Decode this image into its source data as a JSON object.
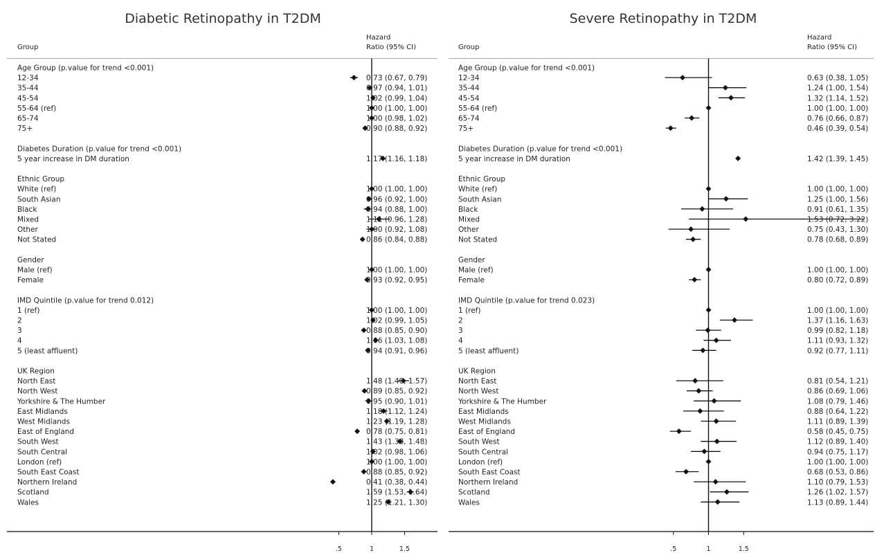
{
  "chart_data": [
    {
      "type": "forest",
      "title": "Diabetic Retinopathy in T2DM",
      "header_group": "Group",
      "header_hr_line1": "Hazard",
      "header_hr_line2": "Ratio (95% CI)",
      "x_ticks": [
        ".5",
        "1",
        "1.5"
      ],
      "xlim": [
        -4.65,
        2.0
      ],
      "reference": 1,
      "rows": [
        {
          "label": "Age Group (p.value for trend <0.001)",
          "heading": true
        },
        {
          "label": "12-34",
          "hr": 0.73,
          "lo": 0.67,
          "hi": 0.79,
          "text": "0.73 (0.67, 0.79)"
        },
        {
          "label": "35-44",
          "hr": 0.97,
          "lo": 0.94,
          "hi": 1.01,
          "text": "0.97 (0.94, 1.01)"
        },
        {
          "label": "45-54",
          "hr": 1.02,
          "lo": 0.99,
          "hi": 1.04,
          "text": "1.02 (0.99, 1.04)"
        },
        {
          "label": "55-64 (ref)",
          "hr": 1.0,
          "lo": 1.0,
          "hi": 1.0,
          "text": "1.00 (1.00, 1.00)"
        },
        {
          "label": "65-74",
          "hr": 1.0,
          "lo": 0.98,
          "hi": 1.02,
          "text": "1.00 (0.98, 1.02)"
        },
        {
          "label": "75+",
          "hr": 0.9,
          "lo": 0.88,
          "hi": 0.92,
          "text": "0.90 (0.88, 0.92)"
        },
        {
          "label": "",
          "blank": true
        },
        {
          "label": "Diabetes Duration (p.value for trend <0.001)",
          "heading": true
        },
        {
          "label": "5 year increase in DM duration",
          "hr": 1.17,
          "lo": 1.16,
          "hi": 1.18,
          "text": "1.17 (1.16, 1.18)"
        },
        {
          "label": "",
          "blank": true
        },
        {
          "label": "Ethnic Group",
          "heading": true
        },
        {
          "label": "White (ref)",
          "hr": 1.0,
          "lo": 1.0,
          "hi": 1.0,
          "text": "1.00 (1.00, 1.00)"
        },
        {
          "label": "South Asian",
          "hr": 0.96,
          "lo": 0.92,
          "hi": 1.0,
          "text": "0.96 (0.92, 1.00)"
        },
        {
          "label": "Black",
          "hr": 0.94,
          "lo": 0.88,
          "hi": 1.0,
          "text": "0.94 (0.88, 1.00)"
        },
        {
          "label": "Mixed",
          "hr": 1.11,
          "lo": 0.96,
          "hi": 1.28,
          "text": "1.11 (0.96, 1.28)"
        },
        {
          "label": "Other",
          "hr": 1.0,
          "lo": 0.92,
          "hi": 1.08,
          "text": "1.00 (0.92, 1.08)"
        },
        {
          "label": "Not Stated",
          "hr": 0.86,
          "lo": 0.84,
          "hi": 0.88,
          "text": "0.86 (0.84, 0.88)"
        },
        {
          "label": "",
          "blank": true
        },
        {
          "label": "Gender",
          "heading": true
        },
        {
          "label": "Male (ref)",
          "hr": 1.0,
          "lo": 1.0,
          "hi": 1.0,
          "text": "1.00 (1.00, 1.00)"
        },
        {
          "label": "Female",
          "hr": 0.93,
          "lo": 0.92,
          "hi": 0.95,
          "text": "0.93 (0.92, 0.95)"
        },
        {
          "label": "",
          "blank": true
        },
        {
          "label": "IMD Quintile (p.value for trend 0.012)",
          "heading": true
        },
        {
          "label": "1  (ref)",
          "hr": 1.0,
          "lo": 1.0,
          "hi": 1.0,
          "text": "1.00 (1.00, 1.00)"
        },
        {
          "label": "2",
          "hr": 1.02,
          "lo": 0.99,
          "hi": 1.05,
          "text": "1.02 (0.99, 1.05)"
        },
        {
          "label": "3",
          "hr": 0.88,
          "lo": 0.85,
          "hi": 0.9,
          "text": "0.88 (0.85, 0.90)"
        },
        {
          "label": "4",
          "hr": 1.06,
          "lo": 1.03,
          "hi": 1.08,
          "text": "1.06 (1.03, 1.08)"
        },
        {
          "label": "5 (least affluent)",
          "hr": 0.94,
          "lo": 0.91,
          "hi": 0.96,
          "text": "0.94 (0.91, 0.96)"
        },
        {
          "label": "",
          "blank": true
        },
        {
          "label": "UK Region",
          "heading": true
        },
        {
          "label": "North East",
          "hr": 1.48,
          "lo": 1.4,
          "hi": 1.57,
          "text": "1.48 (1.40, 1.57)"
        },
        {
          "label": "North West",
          "hr": 0.89,
          "lo": 0.85,
          "hi": 0.92,
          "text": "0.89 (0.85, 0.92)"
        },
        {
          "label": "Yorkshire & The Humber",
          "hr": 0.95,
          "lo": 0.9,
          "hi": 1.01,
          "text": "0.95 (0.90, 1.01)"
        },
        {
          "label": "East Midlands",
          "hr": 1.18,
          "lo": 1.12,
          "hi": 1.24,
          "text": "1.18 (1.12, 1.24)"
        },
        {
          "label": "West Midlands",
          "hr": 1.23,
          "lo": 1.19,
          "hi": 1.28,
          "text": "1.23 (1.19, 1.28)"
        },
        {
          "label": "East of England",
          "hr": 0.78,
          "lo": 0.75,
          "hi": 0.81,
          "text": "0.78 (0.75, 0.81)"
        },
        {
          "label": "South West",
          "hr": 1.43,
          "lo": 1.38,
          "hi": 1.48,
          "text": "1.43 (1.38, 1.48)"
        },
        {
          "label": "South Central",
          "hr": 1.02,
          "lo": 0.98,
          "hi": 1.06,
          "text": "1.02 (0.98, 1.06)"
        },
        {
          "label": "London (ref)",
          "hr": 1.0,
          "lo": 1.0,
          "hi": 1.0,
          "text": "1.00 (1.00, 1.00)"
        },
        {
          "label": "South East Coast",
          "hr": 0.88,
          "lo": 0.85,
          "hi": 0.92,
          "text": "0.88 (0.85, 0.92)"
        },
        {
          "label": "Northern Ireland",
          "hr": 0.41,
          "lo": 0.38,
          "hi": 0.44,
          "text": "0.41 (0.38, 0.44)"
        },
        {
          "label": "Scotland",
          "hr": 1.59,
          "lo": 1.53,
          "hi": 1.64,
          "text": "1.59 (1.53, 1.64)"
        },
        {
          "label": "Wales",
          "hr": 1.25,
          "lo": 1.21,
          "hi": 1.3,
          "text": "1.25 (1.21, 1.30)"
        }
      ]
    },
    {
      "type": "forest",
      "title": "Severe Retinopathy in T2DM",
      "header_group": "Group",
      "header_hr_line1": "Hazard",
      "header_hr_line2": "Ratio (95% CI)",
      "x_ticks": [
        ".5",
        "1",
        "1.5"
      ],
      "xlim": [
        -2.7,
        3.35
      ],
      "reference": 1,
      "rows": [
        {
          "label": "Age Group (p.value for trend <0.001)",
          "heading": true
        },
        {
          "label": "12-34",
          "hr": 0.63,
          "lo": 0.38,
          "hi": 1.05,
          "text": "0.63 (0.38, 1.05)"
        },
        {
          "label": "35-44",
          "hr": 1.24,
          "lo": 1.0,
          "hi": 1.54,
          "text": "1.24 (1.00, 1.54)"
        },
        {
          "label": "45-54",
          "hr": 1.32,
          "lo": 1.14,
          "hi": 1.52,
          "text": "1.32 (1.14, 1.52)"
        },
        {
          "label": "55-64 (ref)",
          "hr": 1.0,
          "lo": 1.0,
          "hi": 1.0,
          "text": "1.00 (1.00, 1.00)"
        },
        {
          "label": "65-74",
          "hr": 0.76,
          "lo": 0.66,
          "hi": 0.87,
          "text": "0.76 (0.66, 0.87)"
        },
        {
          "label": "75+",
          "hr": 0.46,
          "lo": 0.39,
          "hi": 0.54,
          "text": "0.46 (0.39, 0.54)"
        },
        {
          "label": "",
          "blank": true
        },
        {
          "label": "Diabetes Duration (p.value for trend <0.001)",
          "heading": true
        },
        {
          "label": "5 year increase in DM duration",
          "hr": 1.42,
          "lo": 1.39,
          "hi": 1.45,
          "text": "1.42 (1.39, 1.45)"
        },
        {
          "label": "",
          "blank": true
        },
        {
          "label": "Ethnic Group",
          "heading": true
        },
        {
          "label": "White (ref)",
          "hr": 1.0,
          "lo": 1.0,
          "hi": 1.0,
          "text": "1.00 (1.00, 1.00)"
        },
        {
          "label": "South Asian",
          "hr": 1.25,
          "lo": 1.0,
          "hi": 1.56,
          "text": "1.25 (1.00, 1.56)"
        },
        {
          "label": "Black",
          "hr": 0.91,
          "lo": 0.61,
          "hi": 1.35,
          "text": "0.91 (0.61, 1.35)"
        },
        {
          "label": "Mixed",
          "hr": 1.53,
          "lo": 0.72,
          "hi": 3.22,
          "text": "1.53 (0.72, 3.22)"
        },
        {
          "label": "Other",
          "hr": 0.75,
          "lo": 0.43,
          "hi": 1.3,
          "text": "0.75 (0.43, 1.30)"
        },
        {
          "label": "Not Stated",
          "hr": 0.78,
          "lo": 0.68,
          "hi": 0.89,
          "text": "0.78 (0.68, 0.89)"
        },
        {
          "label": "",
          "blank": true
        },
        {
          "label": "Gender",
          "heading": true
        },
        {
          "label": "Male (ref)",
          "hr": 1.0,
          "lo": 1.0,
          "hi": 1.0,
          "text": "1.00 (1.00, 1.00)"
        },
        {
          "label": "Female",
          "hr": 0.8,
          "lo": 0.72,
          "hi": 0.89,
          "text": "0.80 (0.72, 0.89)"
        },
        {
          "label": "",
          "blank": true
        },
        {
          "label": "IMD Quintile (p.value for trend 0.023)",
          "heading": true
        },
        {
          "label": "1  (ref)",
          "hr": 1.0,
          "lo": 1.0,
          "hi": 1.0,
          "text": "1.00 (1.00, 1.00)"
        },
        {
          "label": "2",
          "hr": 1.37,
          "lo": 1.16,
          "hi": 1.63,
          "text": "1.37 (1.16, 1.63)"
        },
        {
          "label": "3",
          "hr": 0.99,
          "lo": 0.82,
          "hi": 1.18,
          "text": "0.99 (0.82, 1.18)"
        },
        {
          "label": "4",
          "hr": 1.11,
          "lo": 0.93,
          "hi": 1.32,
          "text": "1.11 (0.93, 1.32)"
        },
        {
          "label": "5 (least affluent)",
          "hr": 0.92,
          "lo": 0.77,
          "hi": 1.11,
          "text": "0.92 (0.77, 1.11)"
        },
        {
          "label": "",
          "blank": true
        },
        {
          "label": "UK Region",
          "heading": true
        },
        {
          "label": "North East",
          "hr": 0.81,
          "lo": 0.54,
          "hi": 1.21,
          "text": "0.81 (0.54, 1.21)"
        },
        {
          "label": "North West",
          "hr": 0.86,
          "lo": 0.69,
          "hi": 1.06,
          "text": "0.86 (0.69, 1.06)"
        },
        {
          "label": "Yorkshire & The Humber",
          "hr": 1.08,
          "lo": 0.79,
          "hi": 1.46,
          "text": "1.08 (0.79, 1.46)"
        },
        {
          "label": "East Midlands",
          "hr": 0.88,
          "lo": 0.64,
          "hi": 1.22,
          "text": "0.88 (0.64, 1.22)"
        },
        {
          "label": "West Midlands",
          "hr": 1.11,
          "lo": 0.89,
          "hi": 1.39,
          "text": "1.11 (0.89, 1.39)"
        },
        {
          "label": "East of England",
          "hr": 0.58,
          "lo": 0.45,
          "hi": 0.75,
          "text": "0.58 (0.45, 0.75)"
        },
        {
          "label": "South West",
          "hr": 1.12,
          "lo": 0.89,
          "hi": 1.4,
          "text": "1.12 (0.89, 1.40)"
        },
        {
          "label": "South Central",
          "hr": 0.94,
          "lo": 0.75,
          "hi": 1.17,
          "text": "0.94 (0.75, 1.17)"
        },
        {
          "label": "London (ref)",
          "hr": 1.0,
          "lo": 1.0,
          "hi": 1.0,
          "text": "1.00 (1.00, 1.00)"
        },
        {
          "label": "South East Coast",
          "hr": 0.68,
          "lo": 0.53,
          "hi": 0.86,
          "text": "0.68 (0.53, 0.86)"
        },
        {
          "label": "Northern Ireland",
          "hr": 1.1,
          "lo": 0.79,
          "hi": 1.53,
          "text": "1.10 (0.79, 1.53)"
        },
        {
          "label": "Scotland",
          "hr": 1.26,
          "lo": 1.02,
          "hi": 1.57,
          "text": "1.26 (1.02, 1.57)"
        },
        {
          "label": "Wales",
          "hr": 1.13,
          "lo": 0.89,
          "hi": 1.44,
          "text": "1.13 (0.89, 1.44)"
        }
      ]
    }
  ]
}
